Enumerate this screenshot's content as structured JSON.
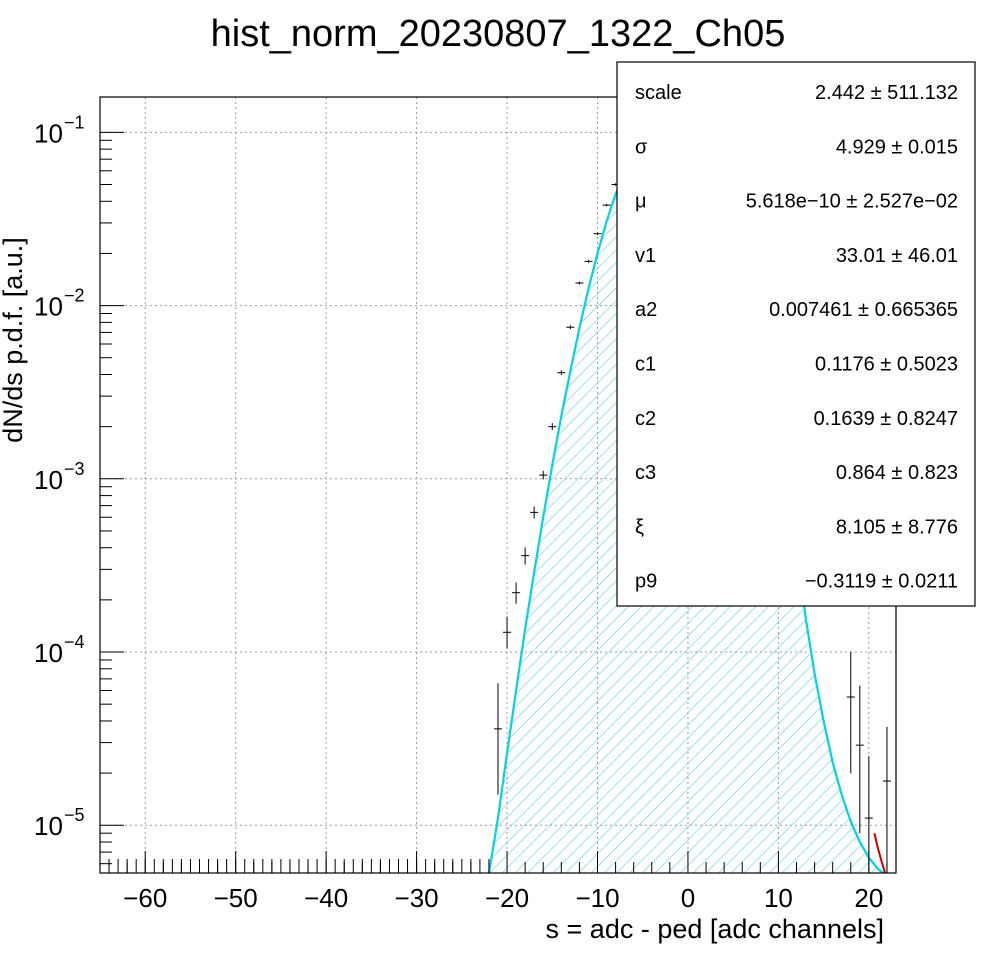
{
  "chart_data": {
    "type": "histogram",
    "title": "hist_norm_20230807_1322_Ch05",
    "xlabel": "s = adc - ped [adc channels]",
    "ylabel": "dN/ds p.d.f. [a.u.]",
    "xlim": [
      -65,
      23
    ],
    "ylim": [
      5.3e-06,
      0.16
    ],
    "yscale": "log",
    "grid": true,
    "x_ticks": [
      -60,
      -50,
      -40,
      -30,
      -20,
      -10,
      0,
      10,
      20
    ],
    "x_tick_labels": [
      "−60",
      "−50",
      "−40",
      "−30",
      "−20",
      "−10",
      "0",
      "10",
      "20"
    ],
    "y_ticks": [
      {
        "value": 0.1,
        "base": "10",
        "exp": "−1"
      },
      {
        "value": 0.01,
        "base": "10",
        "exp": "−2"
      },
      {
        "value": 0.001,
        "base": "10",
        "exp": "−3"
      },
      {
        "value": 0.0001,
        "base": "10",
        "exp": "−4"
      },
      {
        "value": 1e-05,
        "base": "10",
        "exp": "−5"
      }
    ],
    "fit_curve": {
      "color": "#00d4dc",
      "hatch_color": "#5fd0dc",
      "x": [
        -22,
        -21,
        -20,
        -19,
        -18,
        -17,
        -16,
        -15,
        -14,
        -13,
        -12,
        -11,
        -10,
        -9,
        -8,
        -7,
        -6,
        -5,
        -4,
        -3,
        -2,
        -1,
        0,
        1,
        2,
        3,
        4,
        5,
        6,
        7,
        8,
        9,
        10,
        11,
        12,
        13,
        14,
        15,
        16,
        17,
        18,
        19,
        20,
        21,
        21.6
      ],
      "y": [
        5.3e-06,
        1.1e-05,
        2.6e-05,
        6e-05,
        0.000135,
        0.00029,
        0.0006,
        0.0012,
        0.0023,
        0.0042,
        0.0074,
        0.0125,
        0.02,
        0.0305,
        0.044,
        0.058,
        0.07,
        0.077,
        0.0805,
        0.0815,
        0.0815,
        0.081,
        0.08,
        0.077,
        0.071,
        0.062,
        0.05,
        0.038,
        0.026,
        0.0165,
        0.0095,
        0.005,
        0.0024,
        0.00105,
        0.00042,
        0.00016,
        7.5e-05,
        4e-05,
        2.3e-05,
        1.5e-05,
        1.05e-05,
        8e-06,
        6.5e-06,
        5.6e-06,
        5.3e-06
      ]
    },
    "tail_curve": {
      "color": "#cc0000",
      "x": [
        20.6,
        21.0,
        21.4,
        21.8
      ],
      "y": [
        9e-06,
        7.4e-06,
        6.2e-06,
        5.3e-06
      ]
    },
    "data_points": {
      "color": "#000000",
      "x": [
        -21,
        -20,
        -19,
        -18,
        -17,
        -16,
        -15,
        -14,
        -13,
        -12,
        -11,
        -10,
        -9,
        -8,
        18,
        19,
        20,
        22
      ],
      "y": [
        3.6e-05,
        0.00013,
        0.00022,
        0.00036,
        0.00064,
        0.00105,
        0.002,
        0.0041,
        0.0075,
        0.0135,
        0.018,
        0.026,
        0.038,
        0.05,
        5.5e-05,
        2.9e-05,
        1.1e-05,
        1.8e-05
      ],
      "err_low": [
        2.1e-05,
        2.5e-05,
        3e-05,
        4e-05,
        5e-05,
        6e-05,
        9e-05,
        0.00012,
        0.00018,
        0.00025,
        0.00035,
        0.00045,
        0.0006,
        0.0008,
        3.5e-05,
        2e-05,
        8e-06,
        1.3e-05
      ],
      "err_high": [
        3e-05,
        3e-05,
        3.2e-05,
        4.2e-05,
        5.2e-05,
        6.2e-05,
        9.5e-05,
        0.00013,
        0.00019,
        0.00026,
        0.00036,
        0.00046,
        0.00062,
        0.00082,
        4.5e-05,
        3.5e-05,
        1.4e-05,
        1.9e-05
      ]
    },
    "bottom_ticks_x": [
      -64,
      -63,
      -62,
      -61,
      -60,
      -59,
      -58,
      -57,
      -56,
      -55,
      -54,
      -53,
      -52,
      -51,
      -50,
      -49,
      -48,
      -47,
      -46,
      -45,
      -44,
      -43,
      -42,
      -41,
      -40,
      -39,
      -38,
      -37,
      -36,
      -35,
      -34,
      -33,
      -32,
      -31,
      -30,
      -29,
      -28,
      -27,
      -26,
      -25,
      -24,
      -23,
      -22
    ]
  },
  "stats_box": {
    "rows": [
      {
        "name": "scale",
        "value": "2.442 ± 511.132"
      },
      {
        "name": "σ",
        "value": "4.929 ± 0.015"
      },
      {
        "name": "μ",
        "value": "5.618e−10 ± 2.527e−02"
      },
      {
        "name": "v1",
        "value": "33.01 ± 46.01"
      },
      {
        "name": "a2",
        "value": "0.007461 ± 0.665365"
      },
      {
        "name": "c1",
        "value": "0.1176 ± 0.5023"
      },
      {
        "name": "c2",
        "value": "0.1639 ± 0.8247"
      },
      {
        "name": "c3",
        "value": "0.864 ± 0.823"
      },
      {
        "name": "ξ",
        "value": "8.105 ± 8.776"
      },
      {
        "name": "p9",
        "value": "−0.3119 ± 0.0211"
      }
    ]
  }
}
